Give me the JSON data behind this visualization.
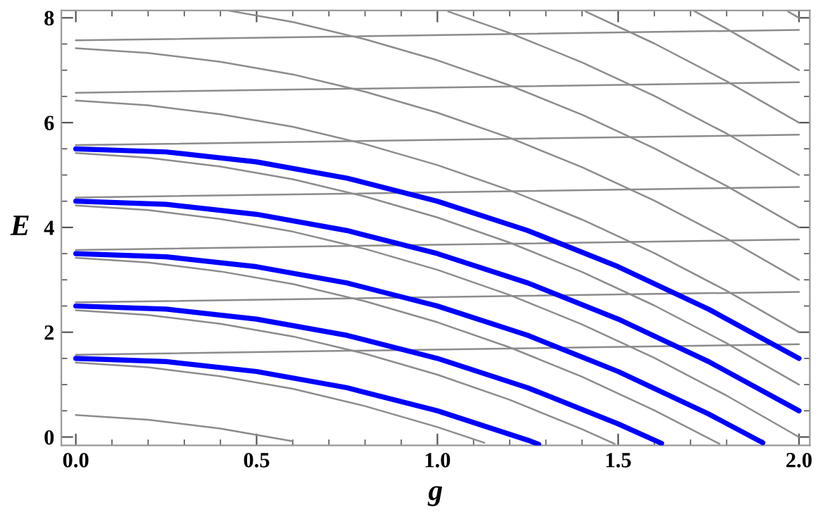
{
  "chart_data": {
    "type": "line",
    "xlabel": "g",
    "ylabel": "E",
    "xlim": [
      -0.04,
      2.03
    ],
    "ylim": [
      -0.16,
      8.14
    ],
    "xticks": [
      {
        "value": 0,
        "label": "0.0"
      },
      {
        "value": 0.1,
        "label": null
      },
      {
        "value": 0.2,
        "label": null
      },
      {
        "value": 0.3,
        "label": null
      },
      {
        "value": 0.4,
        "label": null
      },
      {
        "value": 0.5,
        "label": "0.5"
      },
      {
        "value": 0.6,
        "label": null
      },
      {
        "value": 0.7,
        "label": null
      },
      {
        "value": 0.8,
        "label": null
      },
      {
        "value": 0.9,
        "label": null
      },
      {
        "value": 1.0,
        "label": "1.0"
      },
      {
        "value": 1.1,
        "label": null
      },
      {
        "value": 1.2,
        "label": null
      },
      {
        "value": 1.3,
        "label": null
      },
      {
        "value": 1.4,
        "label": null
      },
      {
        "value": 1.5,
        "label": "1.5"
      },
      {
        "value": 1.6,
        "label": null
      },
      {
        "value": 1.7,
        "label": null
      },
      {
        "value": 1.8,
        "label": null
      },
      {
        "value": 1.9,
        "label": null
      },
      {
        "value": 2.0,
        "label": "2.0"
      }
    ],
    "yticks": [
      0,
      {
        "value": 0.5,
        "label": null
      },
      {
        "value": 1,
        "label": null
      },
      {
        "value": 1.5,
        "label": null
      },
      2,
      {
        "value": 2.5,
        "label": null
      },
      {
        "value": 3,
        "label": null
      },
      {
        "value": 3.5,
        "label": null
      },
      4,
      {
        "value": 4.5,
        "label": null
      },
      {
        "value": 5,
        "label": null
      },
      {
        "value": 5.5,
        "label": null
      },
      6,
      {
        "value": 6.5,
        "label": null
      },
      {
        "value": 7,
        "label": null
      },
      {
        "value": 7.5,
        "label": null
      },
      8
    ],
    "grid": false,
    "legend": false,
    "marker": "none",
    "line_style": "solid",
    "series": [
      {
        "color": "#8c8c8c",
        "x": [
          0,
          0.2,
          0.4,
          0.6
        ],
        "values": [
          0.42,
          0.33,
          0.16,
          -0.08
        ]
      },
      {
        "color": "#8c8c8c",
        "x": [
          0,
          0.2,
          0.4,
          0.6,
          0.8,
          1.0,
          1.13
        ],
        "values": [
          1.42,
          1.33,
          1.16,
          0.92,
          0.59,
          0.19,
          -0.11
        ]
      },
      {
        "color": "#8c8c8c",
        "x": [
          0,
          0.2,
          0.4,
          0.6,
          0.8,
          1.0,
          1.2,
          1.4,
          1.49
        ],
        "values": [
          2.42,
          2.33,
          2.16,
          1.92,
          1.59,
          1.19,
          0.71,
          0.15,
          -0.13
        ]
      },
      {
        "color": "#8c8c8c",
        "x": [
          0,
          0.2,
          0.4,
          0.6,
          0.8,
          1.0,
          1.2,
          1.4,
          1.6,
          1.78
        ],
        "values": [
          3.42,
          3.33,
          3.16,
          2.92,
          2.59,
          2.19,
          1.71,
          1.15,
          0.51,
          -0.13
        ]
      },
      {
        "color": "#8c8c8c",
        "x": [
          0,
          0.2,
          0.4,
          0.6,
          0.8,
          1.0,
          1.2,
          1.4,
          1.6,
          1.8,
          2.0
        ],
        "values": [
          4.42,
          4.33,
          4.16,
          3.92,
          3.59,
          3.19,
          2.71,
          2.15,
          1.51,
          0.79,
          0.0
        ]
      },
      {
        "color": "#8c8c8c",
        "x": [
          0,
          0.2,
          0.4,
          0.6,
          0.8,
          1.0,
          1.2,
          1.4,
          1.6,
          1.8,
          2.0
        ],
        "values": [
          5.42,
          5.33,
          5.16,
          4.92,
          4.59,
          4.19,
          3.71,
          3.15,
          2.51,
          1.79,
          1.0
        ]
      },
      {
        "color": "#8c8c8c",
        "x": [
          0,
          0.2,
          0.4,
          0.6,
          0.8,
          1.0,
          1.2,
          1.4,
          1.6,
          1.8,
          2.0
        ],
        "values": [
          6.42,
          6.33,
          6.16,
          5.92,
          5.59,
          5.19,
          4.71,
          4.15,
          3.51,
          2.79,
          2.0
        ]
      },
      {
        "color": "#8c8c8c",
        "x": [
          0,
          0.2,
          0.4,
          0.6,
          0.8,
          1.0,
          1.2,
          1.4,
          1.6,
          1.8,
          2.0
        ],
        "values": [
          7.42,
          7.33,
          7.16,
          6.92,
          6.59,
          6.19,
          5.71,
          5.15,
          4.51,
          3.79,
          3.0
        ]
      },
      {
        "color": "#8c8c8c",
        "x": [
          0.42,
          0.6,
          0.8,
          1.0,
          1.2,
          1.4,
          1.6,
          1.8,
          2.0
        ],
        "values": [
          8.14,
          7.92,
          7.59,
          7.19,
          6.71,
          6.15,
          5.51,
          4.79,
          4.0
        ]
      },
      {
        "color": "#8c8c8c",
        "x": [
          1.03,
          1.2,
          1.4,
          1.6,
          1.8,
          2.0
        ],
        "values": [
          8.12,
          7.71,
          7.15,
          6.51,
          5.79,
          5.0
        ]
      },
      {
        "color": "#8c8c8c",
        "x": [
          1.41,
          1.6,
          1.8,
          2.0
        ],
        "values": [
          8.12,
          7.51,
          6.79,
          6.0
        ]
      },
      {
        "color": "#8c8c8c",
        "x": [
          1.71,
          1.8,
          2.0
        ],
        "values": [
          8.13,
          7.79,
          7.0
        ]
      },
      {
        "color": "#8c8c8c",
        "x": [
          1.97,
          2.0
        ],
        "values": [
          8.12,
          8.0
        ]
      },
      {
        "color": "#8c8c8c",
        "x": [
          0,
          2.0
        ],
        "values": [
          1.57,
          1.77
        ]
      },
      {
        "color": "#8c8c8c",
        "x": [
          0,
          2.0
        ],
        "values": [
          2.57,
          2.77
        ]
      },
      {
        "color": "#8c8c8c",
        "x": [
          0,
          2.0
        ],
        "values": [
          3.57,
          3.77
        ]
      },
      {
        "color": "#8c8c8c",
        "x": [
          0,
          2.0
        ],
        "values": [
          4.57,
          4.77
        ]
      },
      {
        "color": "#8c8c8c",
        "x": [
          0,
          2.0
        ],
        "values": [
          5.57,
          5.77
        ]
      },
      {
        "color": "#8c8c8c",
        "x": [
          0,
          2.0
        ],
        "values": [
          6.57,
          6.77
        ]
      },
      {
        "color": "#8c8c8c",
        "x": [
          0,
          2.0
        ],
        "values": [
          7.57,
          7.77
        ]
      },
      {
        "color": "#0000ff",
        "x": [
          0,
          0.25,
          0.5,
          0.75,
          1.0,
          1.25,
          1.28
        ],
        "values": [
          1.5,
          1.44,
          1.25,
          0.94,
          0.5,
          -0.06,
          -0.14
        ]
      },
      {
        "color": "#0000ff",
        "x": [
          0,
          0.25,
          0.5,
          0.75,
          1.0,
          1.25,
          1.5,
          1.62
        ],
        "values": [
          2.5,
          2.44,
          2.25,
          1.94,
          1.5,
          0.94,
          0.25,
          -0.12
        ]
      },
      {
        "color": "#0000ff",
        "x": [
          0,
          0.25,
          0.5,
          0.75,
          1.0,
          1.25,
          1.5,
          1.75,
          1.9
        ],
        "values": [
          3.5,
          3.44,
          3.25,
          2.94,
          2.5,
          1.94,
          1.25,
          0.44,
          -0.11
        ]
      },
      {
        "color": "#0000ff",
        "x": [
          0,
          0.25,
          0.5,
          0.75,
          1.0,
          1.25,
          1.5,
          1.75,
          2.0
        ],
        "values": [
          4.5,
          4.44,
          4.25,
          3.94,
          3.5,
          2.94,
          2.25,
          1.44,
          0.5
        ]
      },
      {
        "color": "#0000ff",
        "x": [
          0,
          0.25,
          0.5,
          0.75,
          1.0,
          1.25,
          1.5,
          1.75,
          2.0
        ],
        "values": [
          5.5,
          5.44,
          5.25,
          4.94,
          4.5,
          3.94,
          3.25,
          2.44,
          1.5
        ]
      }
    ]
  }
}
